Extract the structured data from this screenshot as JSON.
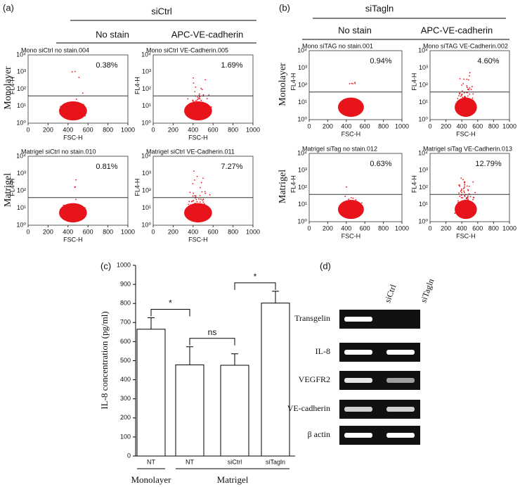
{
  "panel_a": {
    "label": "(a)",
    "group": "siCtrl",
    "columns": [
      "No stain",
      "APC-VE-cadherin"
    ],
    "rows": [
      "Monolayer",
      "Matrigel"
    ],
    "plots": [
      {
        "title": "Mono siCtrl no stain.004",
        "percent": "0.38%"
      },
      {
        "title": "Mono siCtrl VE-Cadherin.005",
        "percent": "1.69%"
      },
      {
        "title": "Matrigel siCtrl no stain.010",
        "percent": "0.81%"
      },
      {
        "title": "Matrigel siCtrl VE-Cadherin.011",
        "percent": "7.27%"
      }
    ]
  },
  "panel_b": {
    "label": "(b)",
    "group": "siTagln",
    "columns": [
      "No stain",
      "APC-VE-cadherin"
    ],
    "rows": [
      "Monolayer",
      "Matrigel"
    ],
    "plots": [
      {
        "title": "Mono siTAG no stain.001",
        "percent": "0.94%"
      },
      {
        "title": "Mono siTAG VE-Cadherin.002",
        "percent": "4.60%"
      },
      {
        "title": "Matrigel siTag no stain.012",
        "percent": "0.63%"
      },
      {
        "title": "Matrigel siTag VE-Cadherin.013",
        "percent": "12.79%"
      }
    ]
  },
  "flow_axes": {
    "x_label": "FSC-H",
    "y_label": "FL4-H",
    "xticks": [
      0,
      200,
      400,
      600,
      800,
      1000
    ],
    "yticks": [
      "10⁰",
      "10¹",
      "10²",
      "10³",
      "10⁴"
    ]
  },
  "chart_data": {
    "type": "bar",
    "panel_label": "(c)",
    "y_label": "IL-8 concentration (pg/ml)",
    "categories": [
      "NT",
      "NT",
      "siCtrl",
      "siTagln"
    ],
    "values": [
      665,
      478,
      476,
      802
    ],
    "errors": [
      60,
      95,
      60,
      62
    ],
    "groups": [
      {
        "name": "Monolayer",
        "span": [
          0,
          0
        ]
      },
      {
        "name": "Matrigel",
        "span": [
          1,
          3
        ]
      }
    ],
    "significance": [
      {
        "label": "*",
        "pair": [
          0,
          1
        ]
      },
      {
        "label": "ns",
        "pair": [
          1,
          2
        ]
      },
      {
        "label": "*",
        "pair": [
          2,
          3
        ]
      }
    ],
    "ylim": [
      0,
      1000
    ],
    "yticks": [
      0,
      100,
      200,
      300,
      400,
      500,
      600,
      700,
      800,
      900,
      1000
    ],
    "color": "#ffffff"
  },
  "panel_d": {
    "label": "(d)",
    "lanes": [
      "siCtrl",
      "siTagln"
    ],
    "genes": [
      "Transgelin",
      "IL-8",
      "VEGFR2",
      "VE-cadherin",
      "β actin"
    ]
  }
}
